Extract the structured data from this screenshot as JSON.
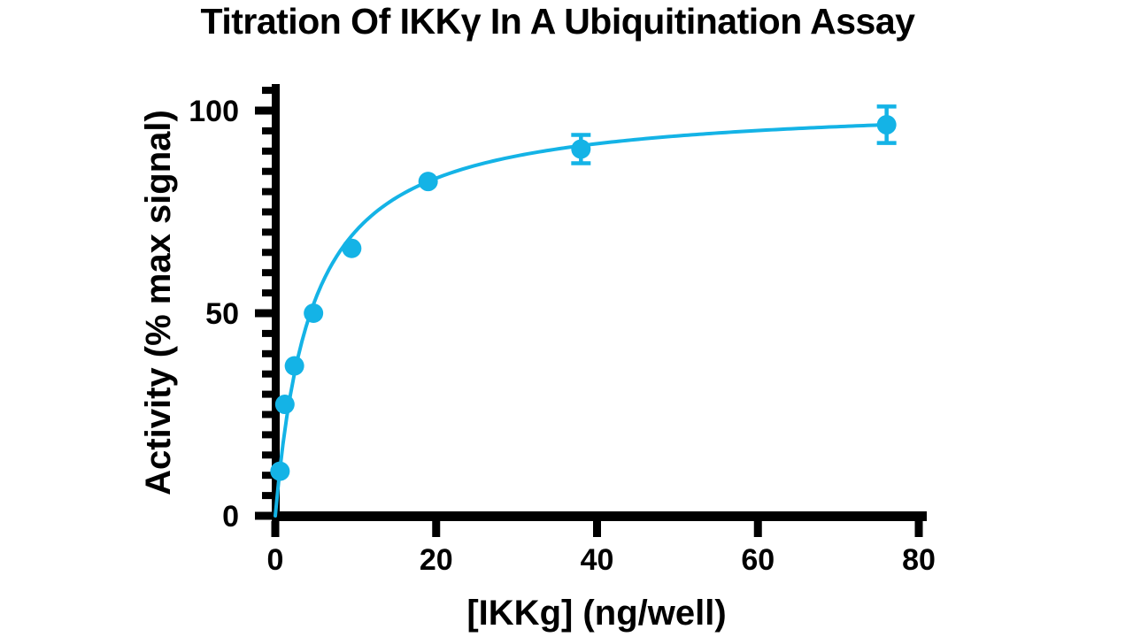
{
  "chart_data": {
    "type": "scatter",
    "title": "Titration Of IKKγ In A Ubiquitination Assay",
    "xlabel": "[IKKg] (ng/well)",
    "ylabel": "Activity (% max signal)",
    "xlim": [
      0,
      80
    ],
    "ylim": [
      0,
      105
    ],
    "x_ticks": [
      0,
      20,
      40,
      60,
      80
    ],
    "y_ticks": [
      0,
      50,
      100
    ],
    "y_minor_tick_step": 5,
    "grid": false,
    "legend": "none",
    "marker_color": "#14b3e6",
    "axis_color": "#000000",
    "points": [
      {
        "x": 0.59,
        "y": 11
      },
      {
        "x": 1.19,
        "y": 27.5
      },
      {
        "x": 2.38,
        "y": 37
      },
      {
        "x": 4.75,
        "y": 50
      },
      {
        "x": 9.5,
        "y": 66
      },
      {
        "x": 19,
        "y": 82.5
      },
      {
        "x": 38,
        "y": 90.5,
        "err": 3.5
      },
      {
        "x": 76,
        "y": 96.5,
        "err": 4.5
      }
    ],
    "fit_curve": {
      "model": "one-site hyperbola y = Bmax*x/(Kd+x)",
      "bmax": 102.3,
      "kd": 4.56,
      "x_range": [
        0,
        76
      ]
    }
  }
}
